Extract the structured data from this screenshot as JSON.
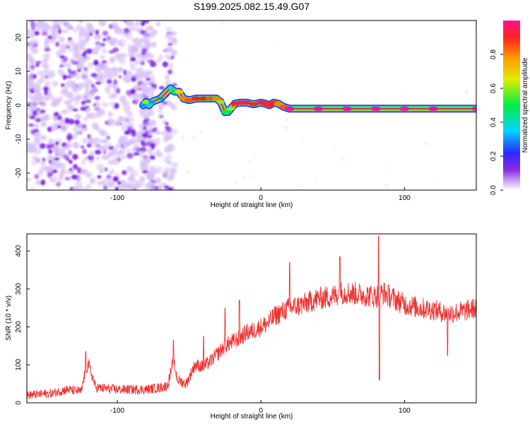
{
  "title": "S199.2025.082.15.49.G07",
  "colors": {
    "snr_line": "#ee3333",
    "noise_purple": "#7a1ae6",
    "noise_light": "#d9c2f7",
    "axis": "#000000"
  },
  "chart_data": [
    {
      "type": "heatmap",
      "title": "S199.2025.082.15.49.G07",
      "xlabel": "Height of straight line (km)",
      "ylabel": "Frequency (Hz)",
      "xlim": [
        -163,
        150
      ],
      "ylim": [
        -25,
        25
      ],
      "x_ticks": [
        -100,
        0,
        100
      ],
      "x_tick_labels": [
        "-100",
        "0",
        "100"
      ],
      "y_ticks": [
        -20,
        -10,
        0,
        10,
        20
      ],
      "y_tick_labels": [
        "-20",
        "-10",
        "0",
        "10",
        "20"
      ],
      "grid": false,
      "noise_region_km": [
        -163,
        -60
      ],
      "ridge": {
        "x": [
          -82,
          -80,
          -78,
          -76,
          -70,
          -63,
          -60,
          -57,
          -54,
          -50,
          -45,
          -40,
          -35,
          -31,
          -28,
          -25,
          -23,
          -21,
          -18,
          -14,
          -10,
          -5,
          0,
          3,
          6,
          9,
          12,
          16,
          20,
          40,
          60,
          80,
          100,
          120,
          150
        ],
        "y": [
          0,
          1,
          0,
          1,
          2,
          5,
          4,
          4,
          2,
          1.5,
          2,
          2,
          2,
          2,
          1,
          -2,
          -2,
          -1,
          0.5,
          0.8,
          0.8,
          0.3,
          0.8,
          0.5,
          0,
          0.8,
          0.5,
          -0.5,
          -1,
          -1,
          -1,
          -1,
          -1,
          -1,
          -1
        ],
        "peak_amplitude": [
          0.3,
          0.6,
          0.4,
          0.3,
          0.3,
          0.4,
          0.5,
          0.7,
          0.8,
          0.85,
          0.9,
          0.9,
          0.85,
          0.8,
          0.6,
          0.5,
          0.5,
          0.6,
          0.9,
          0.95,
          0.95,
          0.9,
          0.95,
          0.9,
          0.9,
          0.9,
          0.8,
          0.85,
          1.0,
          1.0,
          1.0,
          1.0,
          1.0,
          1.0,
          1.0
        ]
      },
      "colorbar": {
        "label": "Normalized spectral amplitude",
        "range": [
          0,
          1
        ],
        "ticks": [
          0.0,
          0.2,
          0.4,
          0.6,
          0.8
        ],
        "tick_labels": [
          "0.0",
          "0.2",
          "0.4",
          "0.6",
          "0.8"
        ],
        "colormap": "rainbow (white→purple→blue→cyan→green→yellow→orange→red→magenta)"
      }
    },
    {
      "type": "line",
      "xlabel": "Height of straight line (km)",
      "ylabel": "SNR (10 * v/v)",
      "xlim": [
        -163,
        150
      ],
      "ylim": [
        0,
        445
      ],
      "x_ticks": [
        -100,
        0,
        100
      ],
      "x_tick_labels": [
        "-100",
        "0",
        "100"
      ],
      "y_ticks": [
        0,
        100,
        200,
        300,
        400
      ],
      "y_tick_labels": [
        "0",
        "100",
        "200",
        "300",
        "400"
      ],
      "grid": false,
      "series": [
        {
          "name": "SNR",
          "envelope_x": [
            -163,
            -145,
            -135,
            -125,
            -122,
            -120,
            -115,
            -100,
            -90,
            -80,
            -70,
            -65,
            -61,
            -58,
            -52,
            -46,
            -40,
            -35,
            -30,
            -25,
            -20,
            -15,
            -10,
            -5,
            0,
            5,
            10,
            15,
            20,
            25,
            30,
            40,
            50,
            55,
            60,
            70,
            80,
            85,
            90,
            100,
            110,
            120,
            130,
            140,
            150
          ],
          "envelope_y": [
            20,
            25,
            35,
            30,
            90,
            100,
            40,
            35,
            35,
            35,
            40,
            45,
            110,
            60,
            50,
            100,
            95,
            110,
            130,
            150,
            160,
            170,
            185,
            190,
            200,
            210,
            230,
            240,
            250,
            255,
            260,
            275,
            280,
            290,
            290,
            285,
            280,
            290,
            280,
            260,
            250,
            245,
            235,
            240,
            250
          ],
          "noise_amplitude": 22,
          "spikes": [
            {
              "x": -122,
              "y": 135
            },
            {
              "x": -61,
              "y": 165
            },
            {
              "x": -40,
              "y": 175
            },
            {
              "x": -25,
              "y": 250
            },
            {
              "x": -15,
              "y": 270
            },
            {
              "x": 20,
              "y": 370
            },
            {
              "x": 55,
              "y": 385
            },
            {
              "x": 82,
              "y": 440
            },
            {
              "x": 82.5,
              "y": 60
            },
            {
              "x": 130,
              "y": 125
            }
          ]
        }
      ]
    }
  ]
}
